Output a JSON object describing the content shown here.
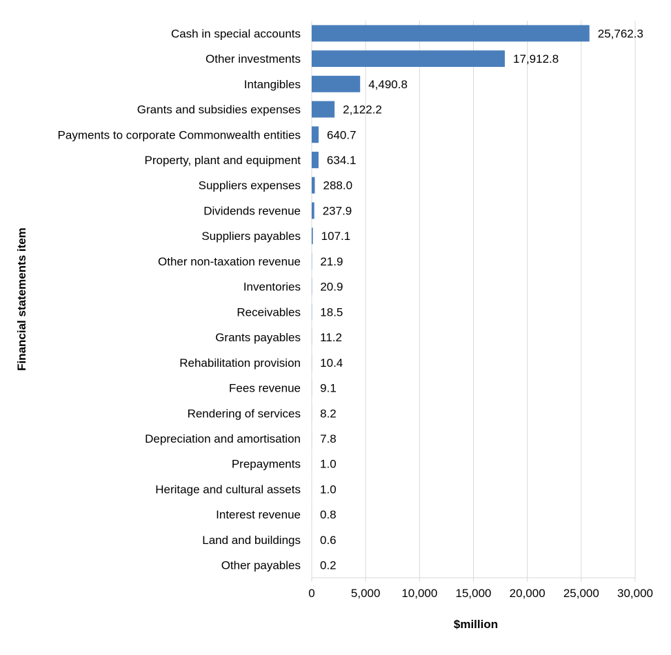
{
  "chart_data": {
    "type": "bar",
    "orientation": "horizontal",
    "categories": [
      "Cash in special accounts",
      "Other investments",
      "Intangibles",
      "Grants and subsidies expenses",
      "Payments to corporate Commonwealth entities",
      "Property, plant and equipment",
      "Suppliers expenses",
      "Dividends revenue",
      "Suppliers payables",
      "Other non-taxation revenue",
      "Inventories",
      "Receivables",
      "Grants payables",
      "Rehabilitation provision",
      "Fees revenue",
      "Rendering of services",
      "Depreciation and amortisation",
      "Prepayments",
      "Heritage and cultural assets",
      "Interest revenue",
      "Land and buildings",
      "Other payables"
    ],
    "values": [
      25762.3,
      17912.8,
      4490.8,
      2122.2,
      640.7,
      634.1,
      288.0,
      237.9,
      107.1,
      21.9,
      20.9,
      18.5,
      11.2,
      10.4,
      9.1,
      8.2,
      7.8,
      1.0,
      1.0,
      0.8,
      0.6,
      0.2
    ],
    "value_labels": [
      "25,762.3",
      "17,912.8",
      "4,490.8",
      "2,122.2",
      "640.7",
      "634.1",
      "288.0",
      "237.9",
      "107.1",
      "21.9",
      "20.9",
      "18.5",
      "11.2",
      "10.4",
      "9.1",
      "8.2",
      "7.8",
      "1.0",
      "1.0",
      "0.8",
      "0.6",
      "0.2"
    ],
    "xlabel": "$million",
    "ylabel": "Financial statements item",
    "xlim": [
      0,
      30000
    ],
    "xticks": [
      0,
      5000,
      10000,
      15000,
      20000,
      25000,
      30000
    ],
    "xtick_labels": [
      "0",
      "5,000",
      "10,000",
      "15,000",
      "20,000",
      "25,000",
      "30,000"
    ],
    "grid": "vertical",
    "legend": "none",
    "bar_color": "#4a7ebb"
  }
}
